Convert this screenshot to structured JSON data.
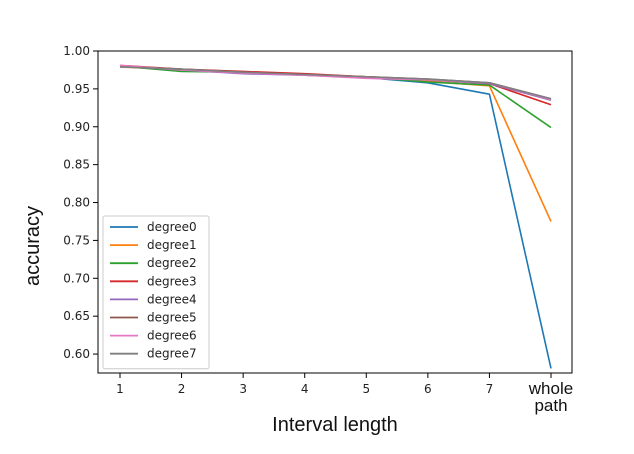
{
  "chart_data": {
    "type": "line",
    "xlabel": "Interval length",
    "ylabel": "accuracy",
    "x_ticks": [
      "1",
      "2",
      "3",
      "4",
      "5",
      "6",
      "7",
      "whole\npath"
    ],
    "y_ticks": [
      "1.00",
      "0.95",
      "0.90",
      "0.85",
      "0.80",
      "0.75",
      "0.70",
      "0.65",
      "0.60"
    ],
    "ylim": [
      0.575,
      1.0
    ],
    "grid": false,
    "legend": "lower-left",
    "series": [
      {
        "name": "degree0",
        "color": "#1f77b4",
        "values": [
          0.98,
          0.976,
          0.972,
          0.969,
          0.965,
          0.958,
          0.943,
          0.581
        ]
      },
      {
        "name": "degree1",
        "color": "#ff7f0e",
        "values": [
          0.979,
          0.975,
          0.972,
          0.969,
          0.966,
          0.96,
          0.954,
          0.775
        ]
      },
      {
        "name": "degree2",
        "color": "#2ca02c",
        "values": [
          0.98,
          0.973,
          0.972,
          0.968,
          0.966,
          0.959,
          0.955,
          0.899
        ]
      },
      {
        "name": "degree3",
        "color": "#d62728",
        "values": [
          0.981,
          0.976,
          0.973,
          0.97,
          0.966,
          0.962,
          0.957,
          0.929
        ]
      },
      {
        "name": "degree4",
        "color": "#9467bd",
        "values": [
          0.98,
          0.975,
          0.97,
          0.968,
          0.965,
          0.962,
          0.957,
          0.935
        ]
      },
      {
        "name": "degree5",
        "color": "#8c564b",
        "values": [
          0.98,
          0.976,
          0.972,
          0.969,
          0.966,
          0.963,
          0.958,
          0.937
        ]
      },
      {
        "name": "degree6",
        "color": "#e377c2",
        "values": [
          0.981,
          0.975,
          0.971,
          0.968,
          0.964,
          0.962,
          0.958,
          0.936
        ]
      },
      {
        "name": "degree7",
        "color": "#7f7f7f",
        "values": [
          0.979,
          0.976,
          0.972,
          0.969,
          0.966,
          0.963,
          0.958,
          0.937
        ]
      }
    ]
  }
}
